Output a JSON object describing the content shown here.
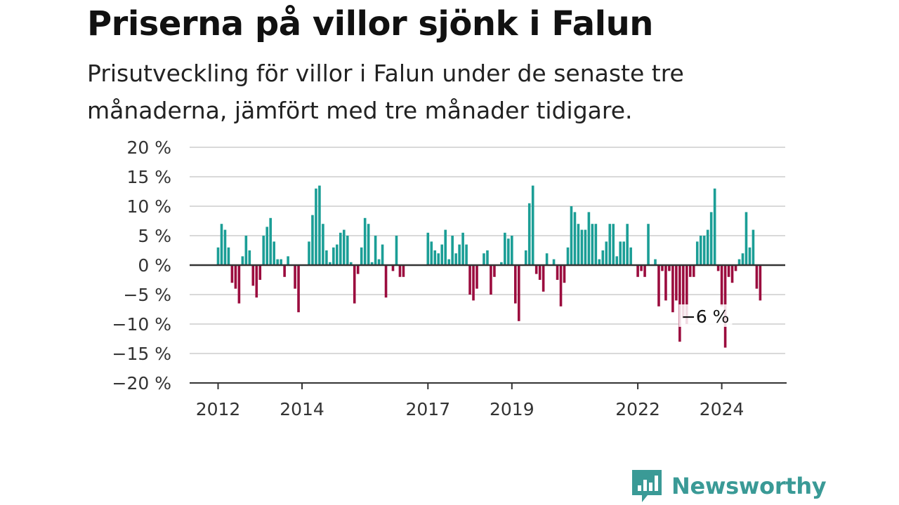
{
  "title": "Priserna på villor sjönk i Falun",
  "subtitle": "Prisutveckling för villor i Falun under de senaste tre månaderna, jämfört med tre månader tidigare.",
  "brand": "Newsworthy",
  "colors": {
    "positive": "#1b9e96",
    "negative": "#9b0c3e",
    "grid": "#d9d9d9",
    "axis": "#333333",
    "brand": "#3a9a96"
  },
  "chart_data": {
    "type": "bar",
    "title": "",
    "xlabel": "",
    "ylabel": "",
    "ylim": [
      -20,
      20
    ],
    "yticks": [
      20,
      15,
      10,
      5,
      0,
      -5,
      -10,
      -15,
      -20
    ],
    "ytick_labels": [
      "20 %",
      "15 %",
      "10 %",
      "5 %",
      "0 %",
      "−5 %",
      "−10 %",
      "−15 %",
      "−20 %"
    ],
    "xticks": [
      {
        "label": "2012",
        "index": 0
      },
      {
        "label": "2014",
        "index": 24
      },
      {
        "label": "2017",
        "index": 60
      },
      {
        "label": "2019",
        "index": 84
      },
      {
        "label": "2022",
        "index": 120
      },
      {
        "label": "2024",
        "index": 144
      }
    ],
    "grid": true,
    "annotation": {
      "text": "−6 %",
      "index": 153
    },
    "values": [
      3,
      7,
      6,
      3,
      -3,
      -4,
      -6.5,
      1.5,
      5,
      2.5,
      -3.5,
      -5.5,
      -2.5,
      5,
      6.5,
      8,
      4,
      1,
      1,
      -2,
      1.5,
      0,
      -4,
      -8,
      0,
      0,
      4,
      8.5,
      13,
      13.5,
      7,
      2.5,
      0.5,
      3,
      3.5,
      5.5,
      6,
      5,
      0.5,
      -6.5,
      -1.5,
      3,
      8,
      7,
      0.5,
      5,
      1,
      3.5,
      -5.5,
      0,
      -1,
      5,
      -2,
      -2,
      0,
      0,
      0,
      0,
      0,
      0,
      5.5,
      4,
      2.5,
      2,
      3.5,
      6,
      1,
      5,
      2,
      3.5,
      5.5,
      3.5,
      -5,
      -6,
      -4,
      0,
      2,
      2.5,
      -5,
      -2,
      0,
      0.5,
      5.5,
      4.5,
      5,
      -6.5,
      -9.5,
      0,
      2.5,
      10.5,
      13.5,
      -1.5,
      -2.5,
      -4.5,
      2,
      0,
      1,
      -2.5,
      -7,
      -3,
      3,
      10,
      9,
      7,
      6,
      6,
      9,
      7,
      7,
      1,
      2.5,
      4,
      7,
      7,
      1.5,
      4,
      4,
      7,
      3,
      0,
      -2,
      -1,
      -2,
      7,
      0,
      1,
      -7,
      -1,
      -6,
      -1,
      -8,
      -6,
      -13,
      -9,
      -10,
      -2,
      -2,
      4,
      5,
      5,
      6,
      9,
      13,
      -1,
      -7,
      -14,
      -2,
      -3,
      -1,
      1,
      2,
      9,
      3,
      6,
      -4,
      -6
    ]
  }
}
